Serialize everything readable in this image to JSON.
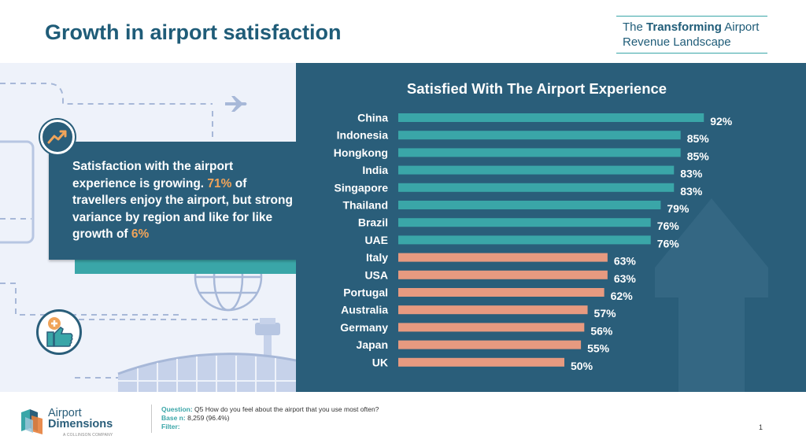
{
  "header": {
    "title": "Growth in airport satisfaction",
    "brand_pre": "The",
    "brand_bold": "Transforming",
    "brand_post": "Airport",
    "brand_line2": "Revenue Landscape"
  },
  "callout": {
    "t1": "Satisfaction with the airport experience is growing.",
    "hl1": "71%",
    "t2": "of travellers enjoy the airport, but strong variance by region and like for like growth of",
    "hl2": "6%"
  },
  "chart_data": {
    "type": "bar",
    "orientation": "horizontal",
    "title": "Satisfied With The Airport Experience",
    "categories": [
      "China",
      "Indonesia",
      "Hongkong",
      "India",
      "Singapore",
      "Thailand",
      "Brazil",
      "UAE",
      "Italy",
      "USA",
      "Portugal",
      "Australia",
      "Germany",
      "Japan",
      "UK"
    ],
    "values": [
      92,
      85,
      85,
      83,
      83,
      79,
      76,
      76,
      63,
      63,
      62,
      57,
      56,
      55,
      50
    ],
    "value_labels": [
      "92%",
      "85%",
      "85%",
      "83%",
      "83%",
      "79%",
      "76%",
      "76%",
      "63%",
      "63%",
      "62%",
      "57%",
      "56%",
      "55%",
      "50%"
    ],
    "groups": [
      "asia_me",
      "asia_me",
      "asia_me",
      "asia_me",
      "asia_me",
      "asia_me",
      "asia_me",
      "asia_me",
      "west",
      "west",
      "west",
      "west",
      "west",
      "west",
      "west"
    ],
    "colors": {
      "asia_me": "#3aa6a8",
      "west": "#e79a80"
    },
    "xlim": [
      0,
      100
    ],
    "xlabel": "",
    "ylabel": "",
    "grid": false
  },
  "footer": {
    "logo_line1": "Airport",
    "logo_line2": "Dimensions",
    "logo_tagline": "A COLLINSON COMPANY",
    "question_label": "Question:",
    "question": "Q5 How do you feel about the airport that you use most often?",
    "base_label": "Base n:",
    "base": "8,259 (96.4%)",
    "filter_label": "Filter:",
    "page_number": "1"
  },
  "colors": {
    "brand_dark": "#2a5e7a",
    "title": "#1f5c78",
    "accent_teal": "#3aa6a8",
    "accent_orange": "#f0a45a"
  }
}
